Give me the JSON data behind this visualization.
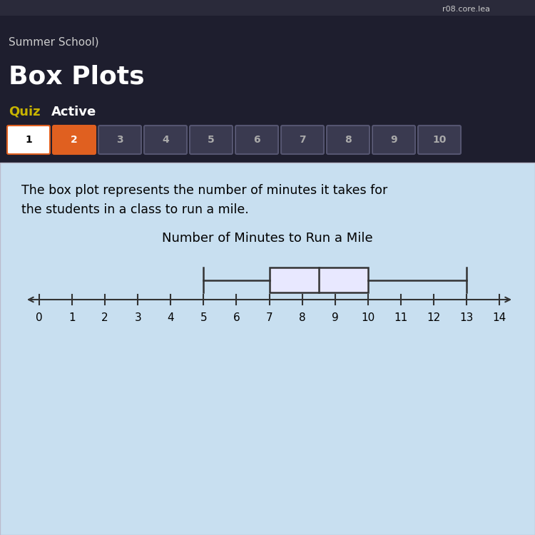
{
  "title": "Number of Minutes to Run a Mile",
  "whisker_min": 5,
  "q1": 7,
  "median": 8.5,
  "q3": 10,
  "whisker_max": 13,
  "x_ticks": [
    0,
    1,
    2,
    3,
    4,
    5,
    6,
    7,
    8,
    9,
    10,
    11,
    12,
    13,
    14
  ],
  "box_color": "#e8e8ff",
  "box_edge_color": "#333333",
  "line_color": "#333333",
  "bg_dark": "#1e1e2e",
  "bg_light_blue": "#c8dff0",
  "title_fontsize": 13,
  "tick_fontsize": 11,
  "btn1_color": "#ffffff",
  "btn1_edge": "#e06020",
  "btn2_color": "#e06020",
  "btn_other_color": "#3a3a50",
  "btn_other_edge": "#555570",
  "quiz_color": "#c8b400",
  "active_color": "#ffffff",
  "text_color": "#000000",
  "summer_school_text": "Summer School)",
  "box_plots_text": "Box Plots",
  "quiz_text": "Quiz",
  "active_text": "Active",
  "desc1": "The box plot represents the number of minutes it takes for",
  "desc2": "the students in a class to run a mile.",
  "browser_bar_color": "#2a2a3a",
  "url_text": "r08.core.lea"
}
